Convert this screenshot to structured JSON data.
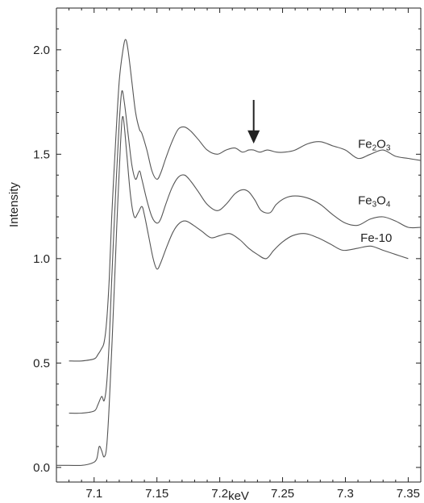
{
  "chart_data": {
    "type": "line",
    "title": "",
    "xlabel": "keV",
    "ylabel": "Intensity",
    "xlim": [
      7.07,
      7.36
    ],
    "ylim": [
      -0.07,
      2.2
    ],
    "x_ticks": [
      7.1,
      7.15,
      7.2,
      7.25,
      7.3,
      7.35
    ],
    "x_tick_labels": [
      "7.1",
      "7.15",
      "7.2",
      "7.25",
      "7.3",
      "7.35"
    ],
    "y_ticks": [
      0.0,
      0.5,
      1.0,
      1.5,
      2.0
    ],
    "y_tick_labels": [
      "0.0",
      "0.5",
      "1.0",
      "1.5",
      "2.0"
    ],
    "grid": false,
    "annotation": {
      "type": "arrow",
      "x": 7.227,
      "y_from": 1.76,
      "y_to": 1.56
    },
    "series": [
      {
        "name": "Fe2O3",
        "label_parts": [
          [
            "Fe",
            ""
          ],
          [
            "2",
            "sub"
          ],
          [
            "O",
            ""
          ],
          [
            "3",
            "sub"
          ]
        ],
        "label_pos": {
          "x": 7.31,
          "y": 1.53
        },
        "x": [
          7.08,
          7.09,
          7.1,
          7.103,
          7.106,
          7.108,
          7.11,
          7.112,
          7.114,
          7.117,
          7.12,
          7.123,
          7.125,
          7.127,
          7.13,
          7.133,
          7.136,
          7.138,
          7.142,
          7.146,
          7.15,
          7.153,
          7.157,
          7.162,
          7.167,
          7.172,
          7.177,
          7.183,
          7.19,
          7.198,
          7.205,
          7.212,
          7.218,
          7.223,
          7.227,
          7.232,
          7.238,
          7.245,
          7.252,
          7.26,
          7.27,
          7.28,
          7.29,
          7.3,
          7.31,
          7.32,
          7.33,
          7.34,
          7.35,
          7.36
        ],
        "values": [
          0.51,
          0.51,
          0.52,
          0.54,
          0.57,
          0.6,
          0.7,
          0.9,
          1.2,
          1.55,
          1.85,
          2.0,
          2.05,
          2.0,
          1.85,
          1.7,
          1.62,
          1.6,
          1.52,
          1.42,
          1.38,
          1.41,
          1.48,
          1.56,
          1.62,
          1.63,
          1.61,
          1.57,
          1.52,
          1.5,
          1.52,
          1.53,
          1.51,
          1.52,
          1.52,
          1.51,
          1.52,
          1.51,
          1.51,
          1.52,
          1.55,
          1.56,
          1.54,
          1.52,
          1.48,
          1.5,
          1.52,
          1.49,
          1.48,
          1.47
        ]
      },
      {
        "name": "Fe3O4",
        "label_parts": [
          [
            "Fe",
            ""
          ],
          [
            "3",
            "sub"
          ],
          [
            "O",
            ""
          ],
          [
            "4",
            "sub"
          ]
        ],
        "label_pos": {
          "x": 7.31,
          "y": 1.26
        },
        "x": [
          7.08,
          7.09,
          7.1,
          7.103,
          7.106,
          7.108,
          7.11,
          7.112,
          7.114,
          7.117,
          7.12,
          7.122,
          7.124,
          7.127,
          7.13,
          7.133,
          7.136,
          7.138,
          7.142,
          7.146,
          7.15,
          7.153,
          7.157,
          7.162,
          7.167,
          7.172,
          7.177,
          7.183,
          7.19,
          7.198,
          7.205,
          7.212,
          7.218,
          7.223,
          7.228,
          7.233,
          7.24,
          7.245,
          7.252,
          7.26,
          7.27,
          7.28,
          7.29,
          7.3,
          7.31,
          7.32,
          7.33,
          7.34,
          7.35,
          7.36
        ],
        "values": [
          0.26,
          0.26,
          0.27,
          0.3,
          0.34,
          0.32,
          0.4,
          0.6,
          0.9,
          1.3,
          1.65,
          1.8,
          1.75,
          1.6,
          1.45,
          1.38,
          1.42,
          1.38,
          1.28,
          1.2,
          1.17,
          1.19,
          1.26,
          1.34,
          1.39,
          1.4,
          1.37,
          1.32,
          1.26,
          1.23,
          1.26,
          1.31,
          1.33,
          1.32,
          1.28,
          1.23,
          1.22,
          1.26,
          1.29,
          1.3,
          1.29,
          1.26,
          1.21,
          1.17,
          1.16,
          1.19,
          1.2,
          1.18,
          1.15,
          1.15
        ]
      },
      {
        "name": "Fe-10",
        "label_parts": [
          [
            "Fe-10",
            ""
          ]
        ],
        "label_pos": {
          "x": 7.312,
          "y": 1.08
        },
        "x": [
          7.07,
          7.08,
          7.09,
          7.098,
          7.102,
          7.104,
          7.106,
          7.108,
          7.11,
          7.112,
          7.115,
          7.118,
          7.121,
          7.123,
          7.126,
          7.129,
          7.132,
          7.135,
          7.138,
          7.14,
          7.143,
          7.147,
          7.15,
          7.153,
          7.158,
          7.163,
          7.168,
          7.173,
          7.179,
          7.186,
          7.193,
          7.2,
          7.208,
          7.216,
          7.223,
          7.23,
          7.237,
          7.243,
          7.25,
          7.258,
          7.268,
          7.278,
          7.288,
          7.298,
          7.31,
          7.32,
          7.33,
          7.34,
          7.35
        ],
        "values": [
          0.01,
          0.01,
          0.01,
          0.02,
          0.04,
          0.1,
          0.08,
          0.05,
          0.1,
          0.3,
          0.7,
          1.15,
          1.55,
          1.68,
          1.5,
          1.3,
          1.2,
          1.22,
          1.25,
          1.21,
          1.12,
          1.0,
          0.95,
          0.98,
          1.06,
          1.13,
          1.17,
          1.18,
          1.16,
          1.13,
          1.1,
          1.11,
          1.12,
          1.09,
          1.05,
          1.02,
          1.0,
          1.04,
          1.08,
          1.11,
          1.12,
          1.1,
          1.07,
          1.04,
          1.05,
          1.06,
          1.04,
          1.02,
          1.0
        ]
      }
    ]
  }
}
